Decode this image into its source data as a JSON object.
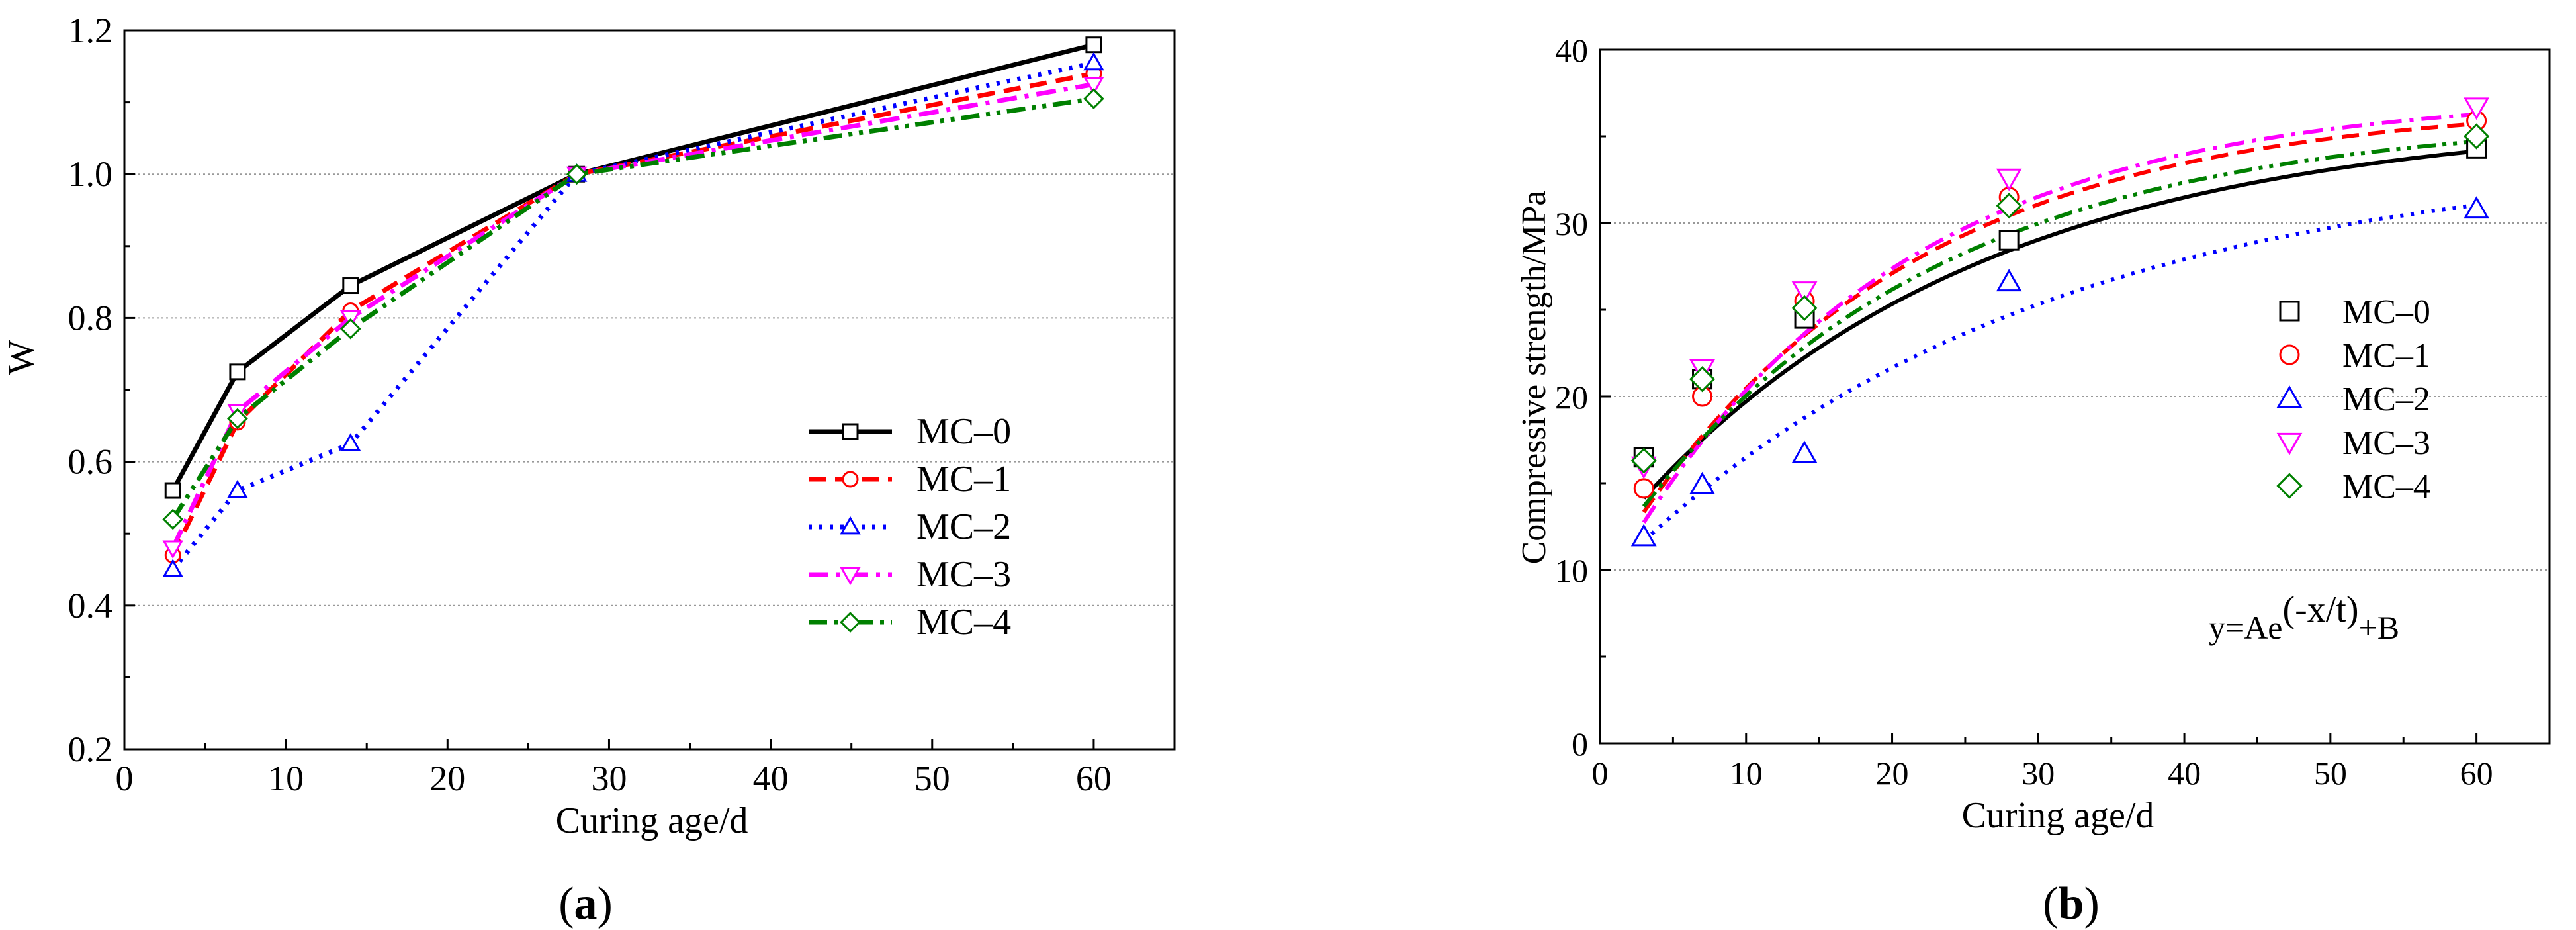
{
  "chart_data": [
    {
      "type": "line",
      "panel_label": "a",
      "title": "",
      "xlabel": "Curing age/d",
      "ylabel": "W",
      "xlim": [
        0,
        65
      ],
      "ylim": [
        0.2,
        1.2
      ],
      "x_ticks": [
        0,
        10,
        20,
        30,
        40,
        50,
        60
      ],
      "y_ticks": [
        0.2,
        0.4,
        0.6,
        0.8,
        1.0,
        1.2
      ],
      "grid": "horizontal dotted",
      "legend_position": "bottom-right",
      "x": [
        3,
        7,
        14,
        28,
        60
      ],
      "series": [
        {
          "name": "MC–0",
          "values": [
            0.56,
            0.725,
            0.845,
            1.0,
            1.18
          ],
          "color": "#000000",
          "marker": "square",
          "dash": "solid"
        },
        {
          "name": "MC–1",
          "values": [
            0.47,
            0.655,
            0.81,
            1.0,
            1.14
          ],
          "color": "#ff0000",
          "marker": "circle",
          "dash": "dash"
        },
        {
          "name": "MC–2",
          "values": [
            0.45,
            0.56,
            0.625,
            1.0,
            1.155
          ],
          "color": "#0000ff",
          "marker": "triangle-up",
          "dash": "dot"
        },
        {
          "name": "MC–3",
          "values": [
            0.48,
            0.67,
            0.8,
            1.0,
            1.125
          ],
          "color": "#ff00ff",
          "marker": "triangle-down",
          "dash": "dashdot"
        },
        {
          "name": "MC–4",
          "values": [
            0.52,
            0.66,
            0.785,
            1.0,
            1.105
          ],
          "color": "#008000",
          "marker": "diamond",
          "dash": "dashdotdot"
        }
      ]
    },
    {
      "type": "scatter",
      "panel_label": "b",
      "title": "",
      "xlabel": "Curing age/d",
      "ylabel": "Compressive strength/MPa",
      "xlim": [
        0,
        65
      ],
      "ylim": [
        0,
        40
      ],
      "x_ticks": [
        0,
        10,
        20,
        30,
        40,
        50,
        60
      ],
      "y_ticks": [
        0,
        10,
        20,
        30,
        40
      ],
      "grid": "horizontal dotted",
      "legend_position": "right",
      "annotation": {
        "prefix": "y=Ae",
        "exponent": "(-x/t)",
        "suffix": "+B"
      },
      "x": [
        3,
        7,
        14,
        28,
        60
      ],
      "series": [
        {
          "name": "MC–0",
          "values": [
            16.5,
            21.0,
            24.5,
            29.0,
            34.3
          ],
          "color": "#000000",
          "marker": "square",
          "dash": "solid",
          "fit": {
            "A": -25.0,
            "t": 24,
            "B": 36.2
          }
        },
        {
          "name": "MC–1",
          "values": [
            14.7,
            20.0,
            25.5,
            31.5,
            35.9
          ],
          "color": "#ff0000",
          "marker": "circle",
          "dash": "dash",
          "fit": {
            "A": -27.6,
            "t": 19.5,
            "B": 37.0
          }
        },
        {
          "name": "MC–2",
          "values": [
            11.9,
            14.9,
            16.7,
            26.6,
            30.8
          ],
          "color": "#0000ff",
          "marker": "triangle-up",
          "dash": "dot",
          "fit": {
            "A": -25.0,
            "t": 29,
            "B": 34.2
          }
        },
        {
          "name": "MC–3",
          "values": [
            16.0,
            21.6,
            26.1,
            32.6,
            36.7
          ],
          "color": "#ff00ff",
          "marker": "triangle-down",
          "dash": "dashdot",
          "fit": {
            "A": -29.0,
            "t": 19,
            "B": 37.5
          }
        },
        {
          "name": "MC–4",
          "values": [
            16.3,
            21.0,
            25.1,
            31.0,
            35.0
          ],
          "color": "#008000",
          "marker": "diamond",
          "dash": "dashdotdot",
          "fit": {
            "A": -26.0,
            "t": 21,
            "B": 36.2
          }
        }
      ]
    }
  ]
}
